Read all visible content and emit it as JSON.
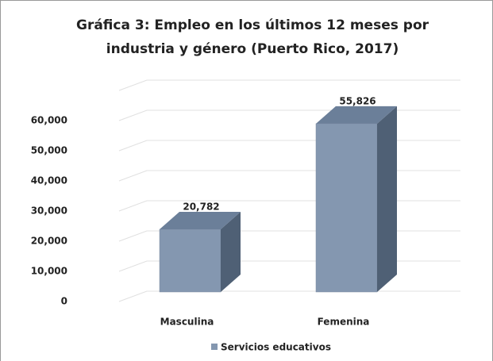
{
  "chart_data": {
    "type": "bar3d",
    "title": [
      "Gráfica 3: Empleo en los últimos 12 meses por",
      "industria y género (Puerto Rico, 2017)"
    ],
    "categories": [
      "Masculina",
      "Femenina"
    ],
    "series": [
      {
        "name": "Servicios educativos",
        "color": "#8497b0",
        "values": [
          20782,
          55826
        ],
        "value_labels": [
          "20,782",
          "55,826"
        ]
      }
    ],
    "ylim": [
      0,
      70000
    ],
    "yticks": [
      0,
      {
        "value": 10000,
        "label": "10,000"
      },
      {
        "value": 20000,
        "label": "20,000"
      },
      {
        "value": 30000,
        "label": "30,000"
      },
      {
        "value": 40000,
        "label": "40,000"
      },
      {
        "value": 50000,
        "label": "50,000"
      },
      {
        "value": 60000,
        "label": "60,000"
      }
    ],
    "grid": true,
    "legend": "bottom"
  }
}
